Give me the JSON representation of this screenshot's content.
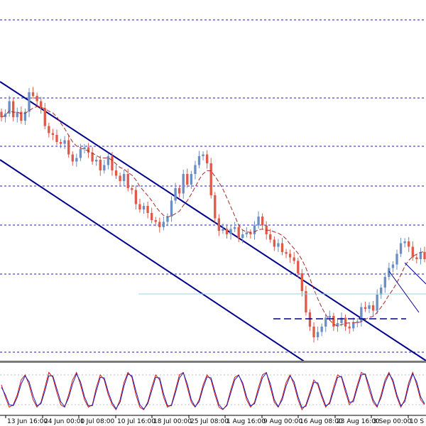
{
  "chart_data": {
    "type": "line",
    "title": "",
    "xlabel": "",
    "ylabel": "",
    "x_tick_labels": [
      "13 Jun 16:00",
      "24 Jun 00:00",
      "1 Jul 08:00",
      "10 Jul 16:00",
      "18 Jul 00:00",
      "25 Jul 08:00",
      "1 Aug 16:00",
      "9 Aug 00:00",
      "16 Aug 08:00",
      "23 Aug 16:00",
      "3 Sep 00:00",
      "10 S"
    ],
    "price_panel": {
      "series": [
        {
          "kind": "candlestick",
          "up_color": "#6b8fc4",
          "down_color": "#e05a4a",
          "close": [
            0.7,
            0.72,
            0.79,
            0.7,
            0.73,
            0.68,
            0.73,
            0.84,
            0.82,
            0.79,
            0.75,
            0.65,
            0.61,
            0.6,
            0.56,
            0.55,
            0.57,
            0.49,
            0.45,
            0.47,
            0.52,
            0.53,
            0.5,
            0.45,
            0.46,
            0.4,
            0.43,
            0.48,
            0.4,
            0.37,
            0.34,
            0.38,
            0.3,
            0.29,
            0.21,
            0.18,
            0.2,
            0.16,
            0.12,
            0.11,
            0.08,
            0.11,
            0.14,
            0.23,
            0.3,
            0.27,
            0.38,
            0.32,
            0.38,
            0.43,
            0.48,
            0.49,
            0.44,
            0.26,
            0.13,
            0.06,
            0.07,
            0.04,
            0.07,
            0.08,
            0.02,
            0.04,
            0.05,
            0.04,
            0.09,
            0.14,
            0.09,
            0.04,
            0.01,
            -0.03,
            -0.01,
            -0.06,
            -0.07,
            -0.09,
            -0.11,
            -0.18,
            -0.28,
            -0.4,
            -0.48,
            -0.54,
            -0.51,
            -0.48,
            -0.43,
            -0.42,
            -0.48,
            -0.46,
            -0.43,
            -0.48,
            -0.49,
            -0.46,
            -0.45,
            -0.37,
            -0.38,
            -0.36,
            -0.39,
            -0.3,
            -0.26,
            -0.2,
            -0.15,
            -0.13,
            -0.07,
            -0.01,
            0.0,
            -0.03,
            -0.09,
            -0.1,
            -0.06,
            -0.1
          ],
          "color": "#e05a4a"
        },
        {
          "name": "",
          "kind": "moving-average",
          "style": "dashed",
          "color": "#a52a2a"
        },
        {
          "name": "",
          "kind": "trend-channel",
          "color": "#00008b"
        },
        {
          "name": "",
          "kind": "horizontal-level",
          "style": "dashed",
          "color": "#00008b"
        }
      ],
      "grid": "horizontal dotted lines",
      "grid_color": "#1c1cbf"
    },
    "oscillator_panel": {
      "type": "line",
      "series": [
        {
          "name": "",
          "color": "#d01818",
          "values": [
            60,
            35,
            15,
            20,
            40,
            70,
            80,
            60,
            30,
            15,
            25,
            55,
            85,
            75,
            45,
            20,
            15,
            40,
            70,
            85,
            60,
            30,
            15,
            20,
            55,
            80,
            70,
            40,
            20,
            10,
            30,
            65,
            85,
            75,
            40,
            15,
            10,
            25,
            55,
            80,
            70,
            35,
            15,
            20,
            50,
            80,
            85,
            55,
            25,
            15,
            30,
            60,
            80,
            70,
            40,
            15,
            10,
            20,
            50,
            75,
            80,
            60,
            30,
            15,
            25,
            55,
            80,
            85,
            55,
            25,
            15,
            35,
            65,
            80,
            60,
            30,
            10,
            20,
            45,
            70,
            60,
            35,
            15,
            25,
            55,
            80,
            75,
            45,
            20,
            30,
            60,
            85,
            80,
            50,
            25,
            15,
            40,
            70,
            85,
            65,
            35,
            15,
            30,
            65,
            85,
            60,
            30,
            20
          ]
        },
        {
          "name": "",
          "color": "#2020c0",
          "values": [
            55,
            40,
            20,
            18,
            35,
            62,
            78,
            66,
            38,
            18,
            22,
            48,
            78,
            78,
            52,
            26,
            16,
            34,
            62,
            82,
            66,
            36,
            18,
            18,
            48,
            75,
            74,
            46,
            24,
            12,
            25,
            58,
            82,
            78,
            48,
            20,
            11,
            22,
            48,
            75,
            74,
            42,
            18,
            18,
            44,
            74,
            84,
            62,
            30,
            16,
            26,
            54,
            76,
            74,
            46,
            20,
            11,
            18,
            44,
            70,
            79,
            64,
            36,
            18,
            22,
            48,
            74,
            84,
            62,
            30,
            16,
            30,
            58,
            78,
            66,
            36,
            14,
            17,
            40,
            65,
            64,
            40,
            18,
            22,
            48,
            75,
            77,
            52,
            25,
            26,
            54,
            80,
            82,
            58,
            30,
            17,
            34,
            64,
            82,
            70,
            40,
            18,
            26,
            58,
            82,
            66,
            36,
            22
          ]
        }
      ],
      "levels": [
        80,
        20
      ],
      "ylim": [
        0,
        100
      ]
    }
  }
}
